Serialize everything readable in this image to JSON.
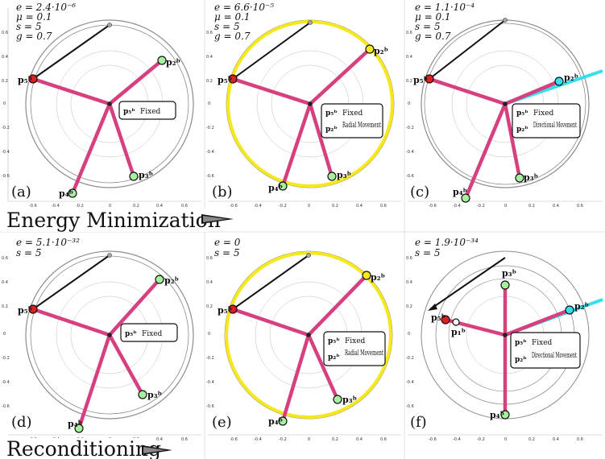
{
  "sections": {
    "top_title": "Energy Minimization",
    "bottom_title": "Reconditioning"
  },
  "axis_ticks": {
    "x": [
      "-0.6",
      "-0.4",
      "-0.2",
      "0",
      "0.2",
      "0.4",
      "0.6"
    ],
    "y": [
      "0.6",
      "0.4",
      "0.2",
      "0",
      "-0.2",
      "-0.4",
      "-0.6"
    ]
  },
  "panels": [
    {
      "label": "(a)",
      "params": [
        "e = 2.4·10⁻⁶",
        "μ = 0.1",
        "s = 5",
        "g = 0.7"
      ],
      "box": [
        {
          "point": "p5",
          "text": "Fixed"
        }
      ],
      "yellow_circle": false,
      "points": {
        "p5": "p₅ᵇ",
        "p2": "p₂ᵇ",
        "p3": "p₃ᵇ",
        "p4": "p₄ᵇ"
      }
    },
    {
      "label": "(b)",
      "params": [
        "e = 6.6·10⁻⁵",
        "μ = 0.1",
        "s = 5",
        "g = 0.7"
      ],
      "box": [
        {
          "point": "p5",
          "text": "Fixed"
        },
        {
          "point": "p2",
          "text": "Radial Movement"
        }
      ],
      "yellow_circle": true,
      "points": {
        "p5": "p₅ᵇ",
        "p2": "p₂ᵇ",
        "p3": "p₃ᵇ",
        "p4": "p₄ᵇ"
      }
    },
    {
      "label": "(c)",
      "params": [
        "e = 1.1·10⁻⁴",
        "μ = 0.1",
        "s = 5",
        "g = 0.7"
      ],
      "box": [
        {
          "point": "p5",
          "text": "Fixed"
        },
        {
          "point": "p2",
          "text": "Directional Movement"
        }
      ],
      "yellow_circle": false,
      "points": {
        "p5": "p₅ᵇ",
        "p2": "p₂ᵇ",
        "p3": "p₃ᵇ",
        "p4": "p₄ᵇ"
      }
    },
    {
      "label": "(d)",
      "params": [
        "e = 5.1·10⁻³²",
        "s = 5"
      ],
      "box": [
        {
          "point": "p5",
          "text": "Fixed"
        }
      ],
      "yellow_circle": false,
      "points": {
        "p5": "p₅ᵇ",
        "p2": "p₂ᵇ",
        "p3": "p₃ᵇ",
        "p4": "p₄ᵇ"
      }
    },
    {
      "label": "(e)",
      "params": [
        "e = 0",
        "s = 5"
      ],
      "box": [
        {
          "point": "p5",
          "text": "Fixed"
        },
        {
          "point": "p2",
          "text": "Radial Movement"
        }
      ],
      "yellow_circle": true,
      "points": {
        "p5": "p₅ᵇ",
        "p2": "p₂ᵇ",
        "p3": "p₃ᵇ",
        "p4": "p₄ᵇ"
      }
    },
    {
      "label": "(f)",
      "params": [
        "e = 1.9·10⁻³⁴",
        "s = 5"
      ],
      "box": [
        {
          "point": "p5",
          "text": "Fixed"
        },
        {
          "point": "p2",
          "text": "Directional Movement"
        }
      ],
      "yellow_circle": false,
      "points": {
        "p5": "p₅ᵇ",
        "p1": "p₁ᵇ",
        "p2": "p₂ᵇ",
        "p3": "p₃ᵇ",
        "p4": "p₄ᵇ"
      }
    }
  ],
  "colors": {
    "limb": "#d6407e",
    "yellow": "#f5e81c",
    "cyan": "#35e0ee",
    "fixed_point": "#e02020",
    "free_point": "#a6f0a0",
    "ring": "#8c8c8c"
  }
}
